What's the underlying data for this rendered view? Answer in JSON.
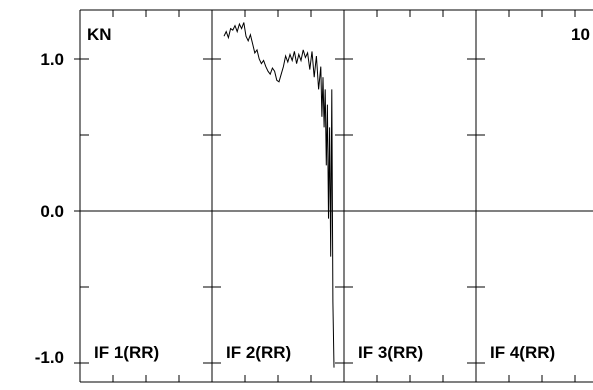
{
  "chart_data": {
    "type": "line",
    "corner_label_left": "KN",
    "corner_label_right": "10",
    "ylim": [
      -1.05,
      1.25
    ],
    "yticks": [
      {
        "value": 1.0,
        "label": "1.0"
      },
      {
        "value": 0.0,
        "label": "0.0"
      },
      {
        "value": -1.0,
        "label": "-1.0"
      }
    ],
    "ytick_minor": [
      0.5,
      -0.5
    ],
    "panels": [
      {
        "label": "IF 1(RR)"
      },
      {
        "label": "IF 2(RR)"
      },
      {
        "label": "IF 3(RR)"
      },
      {
        "label": "IF 4(RR)"
      }
    ],
    "series": [
      {
        "panel": 2,
        "x": [
          0.0,
          0.02,
          0.04,
          0.06,
          0.08,
          0.1,
          0.12,
          0.14,
          0.16,
          0.18,
          0.2,
          0.22,
          0.24,
          0.26,
          0.28,
          0.3,
          0.32,
          0.34,
          0.36,
          0.38,
          0.4,
          0.42,
          0.44,
          0.46,
          0.48,
          0.5,
          0.52,
          0.54,
          0.56,
          0.58,
          0.6,
          0.62,
          0.64,
          0.66,
          0.68,
          0.7,
          0.72,
          0.74,
          0.76,
          0.78,
          0.8,
          0.82,
          0.84,
          0.86,
          0.88,
          0.89,
          0.9,
          0.91,
          0.92,
          0.93,
          0.94,
          0.95,
          0.96,
          0.97,
          0.98,
          0.99,
          1.0
        ],
        "y": [
          1.15,
          1.18,
          1.14,
          1.2,
          1.19,
          1.22,
          1.18,
          1.23,
          1.2,
          1.24,
          1.15,
          1.12,
          1.16,
          1.1,
          1.04,
          1.06,
          1.0,
          0.97,
          0.99,
          0.95,
          0.92,
          0.9,
          0.94,
          0.92,
          0.86,
          0.85,
          0.9,
          0.95,
          1.02,
          0.98,
          1.03,
          0.99,
          1.05,
          0.97,
          1.03,
          0.99,
          1.06,
          1.01,
          1.04,
          0.93,
          1.05,
          0.88,
          1.02,
          0.8,
          0.95,
          0.62,
          0.88,
          0.55,
          0.8,
          0.3,
          0.7,
          -0.05,
          0.55,
          -0.3,
          0.8,
          -0.6,
          -1.03
        ]
      }
    ],
    "grid": false,
    "xlabel": "",
    "ylabel": ""
  }
}
